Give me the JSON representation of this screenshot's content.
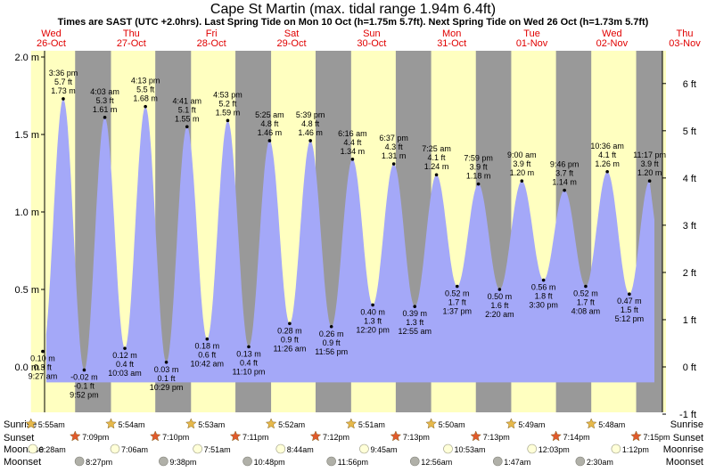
{
  "chart_data": {
    "type": "area",
    "title": "Cape St Martin (max. tidal range 1.94m 6.4ft)",
    "subtitle": "Times are SAST (UTC +2.0hrs). Last Spring Tide on Mon 10 Oct (h=1.75m 5.7ft). Next Spring Tide on Wed 26 Oct (h=1.73m 5.7ft)",
    "days": [
      {
        "dow": "Wed",
        "date": "26-Oct"
      },
      {
        "dow": "Thu",
        "date": "27-Oct"
      },
      {
        "dow": "Fri",
        "date": "28-Oct"
      },
      {
        "dow": "Sat",
        "date": "29-Oct"
      },
      {
        "dow": "Sun",
        "date": "30-Oct"
      },
      {
        "dow": "Mon",
        "date": "31-Oct"
      },
      {
        "dow": "Tue",
        "date": "01-Nov"
      },
      {
        "dow": "Wed",
        "date": "02-Nov"
      },
      {
        "dow": "Thu",
        "date": "03-Nov"
      }
    ],
    "y_left_ticks": [
      "2.0 m",
      "1.5 m",
      "1.0 m",
      "0.5 m",
      "0.0 m"
    ],
    "y_right_ticks": [
      "6 ft",
      "5 ft",
      "4 ft",
      "3 ft",
      "2 ft",
      "1 ft",
      "0 ft",
      "-1 ft"
    ],
    "tides": [
      {
        "type": "low",
        "day": 0,
        "time": "9:27 am",
        "t": 9.45,
        "m": 0.1,
        "m_label": "0.10 m",
        "ft": "0.3 ft"
      },
      {
        "type": "high",
        "day": 0,
        "time": "3:36 pm",
        "t": 15.6,
        "m": 1.73,
        "m_label": "1.73 m",
        "ft": "5.7 ft"
      },
      {
        "type": "low",
        "day": 0,
        "time": "9:52 pm",
        "t": 21.87,
        "m": -0.02,
        "m_label": "-0.02 m",
        "ft": "-0.1 ft"
      },
      {
        "type": "high",
        "day": 1,
        "time": "4:03 am",
        "t": 4.05,
        "m": 1.61,
        "m_label": "1.61 m",
        "ft": "5.3 ft"
      },
      {
        "type": "low",
        "day": 1,
        "time": "10:03 am",
        "t": 10.05,
        "m": 0.12,
        "m_label": "0.12 m",
        "ft": "0.4 ft"
      },
      {
        "type": "high",
        "day": 1,
        "time": "4:13 pm",
        "t": 16.22,
        "m": 1.68,
        "m_label": "1.68 m",
        "ft": "5.5 ft"
      },
      {
        "type": "low",
        "day": 1,
        "time": "10:29 pm",
        "t": 22.48,
        "m": 0.03,
        "m_label": "0.03 m",
        "ft": "0.1 ft"
      },
      {
        "type": "high",
        "day": 2,
        "time": "4:41 am",
        "t": 4.68,
        "m": 1.55,
        "m_label": "1.55 m",
        "ft": "5.1 ft"
      },
      {
        "type": "low",
        "day": 2,
        "time": "10:42 am",
        "t": 10.7,
        "m": 0.18,
        "m_label": "0.18 m",
        "ft": "0.6 ft"
      },
      {
        "type": "high",
        "day": 2,
        "time": "4:53 pm",
        "t": 16.88,
        "m": 1.59,
        "m_label": "1.59 m",
        "ft": "5.2 ft"
      },
      {
        "type": "low",
        "day": 2,
        "time": "11:10 pm",
        "t": 23.17,
        "m": 0.13,
        "m_label": "0.13 m",
        "ft": "0.4 ft"
      },
      {
        "type": "high",
        "day": 3,
        "time": "5:25 am",
        "t": 5.42,
        "m": 1.46,
        "m_label": "1.46 m",
        "ft": "4.8 ft"
      },
      {
        "type": "low",
        "day": 3,
        "time": "11:26 am",
        "t": 11.43,
        "m": 0.28,
        "m_label": "0.28 m",
        "ft": "0.9 ft"
      },
      {
        "type": "high",
        "day": 3,
        "time": "5:39 pm",
        "t": 17.65,
        "m": 1.46,
        "m_label": "1.46 m",
        "ft": "4.8 ft"
      },
      {
        "type": "low",
        "day": 3,
        "time": "11:56 pm",
        "t": 23.93,
        "m": 0.26,
        "m_label": "0.26 m",
        "ft": "0.9 ft"
      },
      {
        "type": "high",
        "day": 4,
        "time": "6:16 am",
        "t": 6.27,
        "m": 1.34,
        "m_label": "1.34 m",
        "ft": "4.4 ft"
      },
      {
        "type": "low",
        "day": 4,
        "time": "12:20 pm",
        "t": 12.33,
        "m": 0.4,
        "m_label": "0.40 m",
        "ft": "1.3 ft"
      },
      {
        "type": "high",
        "day": 4,
        "time": "6:37 pm",
        "t": 18.62,
        "m": 1.31,
        "m_label": "1.31 m",
        "ft": "4.3 ft"
      },
      {
        "type": "low",
        "day": 5,
        "time": "12:55 am",
        "t": 0.92,
        "m": 0.39,
        "m_label": "0.39 m",
        "ft": "1.3 ft"
      },
      {
        "type": "high",
        "day": 5,
        "time": "7:25 am",
        "t": 7.42,
        "m": 1.24,
        "m_label": "1.24 m",
        "ft": "4.1 ft"
      },
      {
        "type": "low",
        "day": 5,
        "time": "1:37 pm",
        "t": 13.62,
        "m": 0.52,
        "m_label": "0.52 m",
        "ft": "1.7 ft"
      },
      {
        "type": "high",
        "day": 5,
        "time": "7:59 pm",
        "t": 19.98,
        "m": 1.18,
        "m_label": "1.18 m",
        "ft": "3.9 ft"
      },
      {
        "type": "low",
        "day": 6,
        "time": "2:20 am",
        "t": 2.33,
        "m": 0.5,
        "m_label": "0.50 m",
        "ft": "1.6 ft"
      },
      {
        "type": "high",
        "day": 6,
        "time": "9:00 am",
        "t": 9.0,
        "m": 1.2,
        "m_label": "1.20 m",
        "ft": "3.9 ft"
      },
      {
        "type": "low",
        "day": 6,
        "time": "3:30 pm",
        "t": 15.5,
        "m": 0.56,
        "m_label": "0.56 m",
        "ft": "1.8 ft"
      },
      {
        "type": "high",
        "day": 6,
        "time": "9:46 pm",
        "t": 21.77,
        "m": 1.14,
        "m_label": "1.14 m",
        "ft": "3.7 ft"
      },
      {
        "type": "low",
        "day": 7,
        "time": "4:08 am",
        "t": 4.13,
        "m": 0.52,
        "m_label": "0.52 m",
        "ft": "1.7 ft"
      },
      {
        "type": "high",
        "day": 7,
        "time": "10:36 am",
        "t": 10.6,
        "m": 1.26,
        "m_label": "1.26 m",
        "ft": "4.1 ft"
      },
      {
        "type": "low",
        "day": 7,
        "time": "5:12 pm",
        "t": 17.2,
        "m": 0.47,
        "m_label": "0.47 m",
        "ft": "1.5 ft"
      },
      {
        "type": "high",
        "day": 7,
        "time": "11:17 pm",
        "t": 23.28,
        "m": 1.2,
        "m_label": "1.20 m",
        "ft": "3.9 ft"
      }
    ],
    "sun": [
      {
        "rise": "5:55am",
        "rise_t": 5.92,
        "set": "7:09pm",
        "set_t": 19.15
      },
      {
        "rise": "5:54am",
        "rise_t": 5.9,
        "set": "7:10pm",
        "set_t": 19.17
      },
      {
        "rise": "5:53am",
        "rise_t": 5.88,
        "set": "7:11pm",
        "set_t": 19.18
      },
      {
        "rise": "5:52am",
        "rise_t": 5.87,
        "set": "7:12pm",
        "set_t": 19.2
      },
      {
        "rise": "5:51am",
        "rise_t": 5.85,
        "set": "7:13pm",
        "set_t": 19.22
      },
      {
        "rise": "5:50am",
        "rise_t": 5.83,
        "set": "7:13pm",
        "set_t": 19.22
      },
      {
        "rise": "5:49am",
        "rise_t": 5.82,
        "set": "7:14pm",
        "set_t": 19.23
      },
      {
        "rise": "5:48am",
        "rise_t": 5.8,
        "set": "7:15pm",
        "set_t": 19.25
      }
    ],
    "moonrise": [
      {
        "day": 0,
        "time": "6:28am",
        "t": 6.47
      },
      {
        "day": 1,
        "time": "7:06am",
        "t": 7.1
      },
      {
        "day": 2,
        "time": "7:51am",
        "t": 7.85
      },
      {
        "day": 3,
        "time": "8:44am",
        "t": 8.73
      },
      {
        "day": 4,
        "time": "9:45am",
        "t": 9.75
      },
      {
        "day": 5,
        "time": "10:53am",
        "t": 10.88
      },
      {
        "day": 6,
        "time": "12:03pm",
        "t": 12.05
      },
      {
        "day": 7,
        "time": "1:12pm",
        "t": 13.2
      }
    ],
    "moonset": [
      {
        "day": 0,
        "time": "8:27pm",
        "t": 20.45
      },
      {
        "day": 1,
        "time": "9:38pm",
        "t": 21.63
      },
      {
        "day": 2,
        "time": "10:48pm",
        "t": 22.8
      },
      {
        "day": 3,
        "time": "11:56pm",
        "t": 23.93
      },
      {
        "day": 5,
        "time": "12:56am",
        "t": 0.93
      },
      {
        "day": 6,
        "time": "1:47am",
        "t": 1.78
      },
      {
        "day": 7,
        "time": "2:30am",
        "t": 2.5
      }
    ],
    "row_labels": {
      "sunrise": "Sunrise",
      "sunset": "Sunset",
      "moonrise": "Moonrise",
      "moonset": "Moonset"
    },
    "colors": {
      "night": "#999999",
      "day": "#ffffc0",
      "water": "#a4a8f8",
      "star_rise": "#e6b84a",
      "star_set": "#e05a2c",
      "moon_rise": "#ffffd8",
      "moon_set": "#b0b0a8",
      "day_label": "#e00000"
    }
  }
}
